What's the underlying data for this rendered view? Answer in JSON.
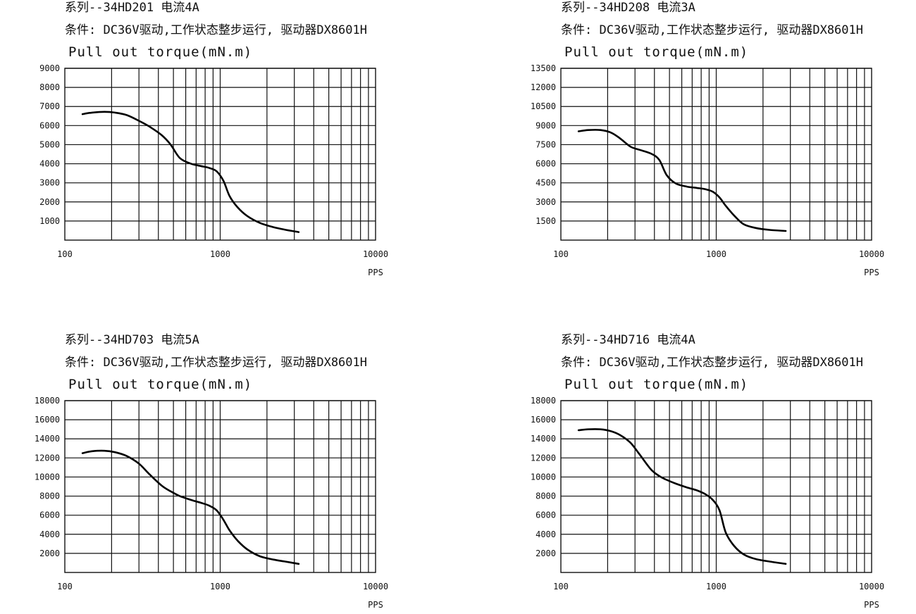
{
  "chart_data": [
    {
      "type": "line",
      "title_lines": [
        "系列--34HD201 电流4A",
        "条件: DC36V驱动,工作状态整步运行, 驱动器DX8601H"
      ],
      "ylabel": "Pull out torque(mN.m)",
      "xlabel": "PPS",
      "xscale": "log",
      "xlim": [
        100,
        10000
      ],
      "xticks": [
        "100",
        "1000",
        "10000"
      ],
      "ylim": [
        0,
        9000
      ],
      "yticks": [
        1000,
        2000,
        3000,
        4000,
        5000,
        6000,
        7000,
        8000,
        9000
      ],
      "grid": true,
      "series": [
        {
          "x": [
            130,
            150,
            180,
            210,
            250,
            300,
            350,
            420,
            480,
            550,
            650,
            750,
            850,
            950,
            1050,
            1150,
            1300,
            1500,
            1800,
            2200,
            2600,
            3200
          ],
          "y": [
            6600,
            6680,
            6720,
            6680,
            6550,
            6250,
            5950,
            5500,
            5000,
            4300,
            4000,
            3880,
            3780,
            3600,
            3100,
            2300,
            1700,
            1250,
            900,
            680,
            550,
            420
          ]
        }
      ]
    },
    {
      "type": "line",
      "title_lines": [
        "系列--34HD208 电流3A",
        "条件: DC36V驱动,工作状态整步运行, 驱动器DX8601H"
      ],
      "ylabel": "Pull out torque(mN.m)",
      "xlabel": "PPS",
      "xscale": "log",
      "xlim": [
        100,
        10000
      ],
      "xticks": [
        "100",
        "1000",
        "10000"
      ],
      "ylim": [
        0,
        13500
      ],
      "yticks": [
        1500,
        3000,
        4500,
        6000,
        7500,
        9000,
        10500,
        12000,
        13500
      ],
      "grid": true,
      "series": [
        {
          "x": [
            130,
            150,
            180,
            210,
            240,
            280,
            320,
            380,
            430,
            480,
            550,
            650,
            750,
            850,
            950,
            1050,
            1150,
            1300,
            1500,
            1800,
            2200,
            2800
          ],
          "y": [
            8550,
            8650,
            8650,
            8450,
            8000,
            7350,
            7100,
            6800,
            6300,
            5100,
            4450,
            4200,
            4100,
            4000,
            3800,
            3350,
            2700,
            1950,
            1250,
            950,
            800,
            720
          ]
        }
      ]
    },
    {
      "type": "line",
      "title_lines": [
        "系列--34HD703 电流5A",
        "条件: DC36V驱动,工作状态整步运行, 驱动器DX8601H"
      ],
      "ylabel": "Pull out torque(mN.m)",
      "xlabel": "PPS",
      "xscale": "log",
      "xlim": [
        100,
        10000
      ],
      "xticks": [
        "100",
        "1000",
        "10000"
      ],
      "ylim": [
        0,
        18000
      ],
      "yticks": [
        2000,
        4000,
        6000,
        8000,
        10000,
        12000,
        14000,
        16000,
        18000
      ],
      "grid": true,
      "series": [
        {
          "x": [
            130,
            150,
            180,
            210,
            250,
            300,
            350,
            420,
            480,
            550,
            650,
            750,
            850,
            950,
            1050,
            1150,
            1300,
            1500,
            1800,
            2200,
            2600,
            3200
          ],
          "y": [
            12500,
            12700,
            12750,
            12600,
            12200,
            11400,
            10300,
            9100,
            8500,
            8000,
            7600,
            7300,
            7000,
            6500,
            5500,
            4400,
            3300,
            2400,
            1700,
            1350,
            1150,
            900
          ]
        }
      ]
    },
    {
      "type": "line",
      "title_lines": [
        "系列--34HD716 电流4A",
        "条件: DC36V驱动,工作状态整步运行, 驱动器DX8601H"
      ],
      "ylabel": "Pull out torque(mN.m)",
      "xlabel": "PPS",
      "xscale": "log",
      "xlim": [
        100,
        10000
      ],
      "xticks": [
        "100",
        "1000",
        "10000"
      ],
      "ylim": [
        0,
        18000
      ],
      "yticks": [
        2000,
        4000,
        6000,
        8000,
        10000,
        12000,
        14000,
        16000,
        18000
      ],
      "grid": true,
      "series": [
        {
          "x": [
            130,
            150,
            180,
            210,
            240,
            280,
            320,
            380,
            430,
            480,
            550,
            650,
            750,
            850,
            950,
            1050,
            1150,
            1300,
            1500,
            1800,
            2300,
            2800
          ],
          "y": [
            14900,
            15000,
            15000,
            14800,
            14400,
            13600,
            12400,
            10800,
            10100,
            9700,
            9300,
            8900,
            8600,
            8200,
            7600,
            6500,
            4200,
            2800,
            1900,
            1400,
            1100,
            900
          ]
        }
      ]
    }
  ]
}
